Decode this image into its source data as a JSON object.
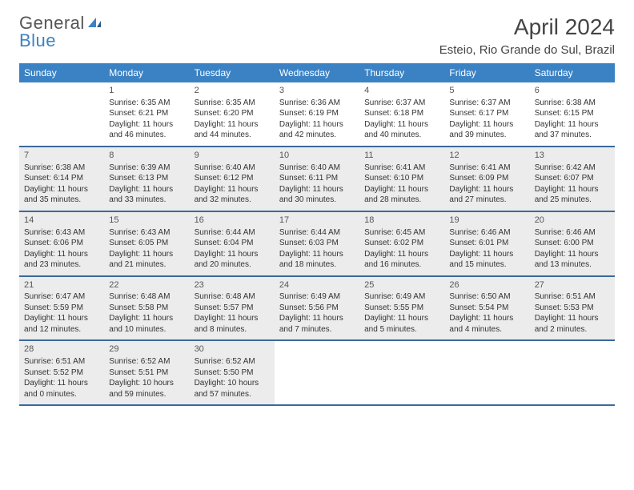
{
  "logo": {
    "word1": "General",
    "word2": "Blue"
  },
  "title": "April 2024",
  "location": "Esteio, Rio Grande do Sul, Brazil",
  "colors": {
    "header_bg": "#3b82c4",
    "header_text": "#ffffff",
    "row_border": "#3b6a9a",
    "shaded_bg": "#ececec",
    "body_text": "#333333",
    "logo_blue": "#3b82c4",
    "logo_gray": "#555555"
  },
  "typography": {
    "title_fontsize": 28,
    "location_fontsize": 15,
    "weekday_fontsize": 12,
    "daynum_fontsize": 11,
    "cell_fontsize": 10
  },
  "weekdays": [
    "Sunday",
    "Monday",
    "Tuesday",
    "Wednesday",
    "Thursday",
    "Friday",
    "Saturday"
  ],
  "weeks": [
    [
      {
        "n": "",
        "empty": true
      },
      {
        "n": "1",
        "sr": "6:35 AM",
        "ss": "6:21 PM",
        "dl": "11 hours and 46 minutes."
      },
      {
        "n": "2",
        "sr": "6:35 AM",
        "ss": "6:20 PM",
        "dl": "11 hours and 44 minutes."
      },
      {
        "n": "3",
        "sr": "6:36 AM",
        "ss": "6:19 PM",
        "dl": "11 hours and 42 minutes."
      },
      {
        "n": "4",
        "sr": "6:37 AM",
        "ss": "6:18 PM",
        "dl": "11 hours and 40 minutes."
      },
      {
        "n": "5",
        "sr": "6:37 AM",
        "ss": "6:17 PM",
        "dl": "11 hours and 39 minutes."
      },
      {
        "n": "6",
        "sr": "6:38 AM",
        "ss": "6:15 PM",
        "dl": "11 hours and 37 minutes."
      }
    ],
    [
      {
        "n": "7",
        "sr": "6:38 AM",
        "ss": "6:14 PM",
        "dl": "11 hours and 35 minutes.",
        "shaded": true
      },
      {
        "n": "8",
        "sr": "6:39 AM",
        "ss": "6:13 PM",
        "dl": "11 hours and 33 minutes.",
        "shaded": true
      },
      {
        "n": "9",
        "sr": "6:40 AM",
        "ss": "6:12 PM",
        "dl": "11 hours and 32 minutes.",
        "shaded": true
      },
      {
        "n": "10",
        "sr": "6:40 AM",
        "ss": "6:11 PM",
        "dl": "11 hours and 30 minutes.",
        "shaded": true
      },
      {
        "n": "11",
        "sr": "6:41 AM",
        "ss": "6:10 PM",
        "dl": "11 hours and 28 minutes.",
        "shaded": true
      },
      {
        "n": "12",
        "sr": "6:41 AM",
        "ss": "6:09 PM",
        "dl": "11 hours and 27 minutes.",
        "shaded": true
      },
      {
        "n": "13",
        "sr": "6:42 AM",
        "ss": "6:07 PM",
        "dl": "11 hours and 25 minutes.",
        "shaded": true
      }
    ],
    [
      {
        "n": "14",
        "sr": "6:43 AM",
        "ss": "6:06 PM",
        "dl": "11 hours and 23 minutes.",
        "shaded": true
      },
      {
        "n": "15",
        "sr": "6:43 AM",
        "ss": "6:05 PM",
        "dl": "11 hours and 21 minutes.",
        "shaded": true
      },
      {
        "n": "16",
        "sr": "6:44 AM",
        "ss": "6:04 PM",
        "dl": "11 hours and 20 minutes.",
        "shaded": true
      },
      {
        "n": "17",
        "sr": "6:44 AM",
        "ss": "6:03 PM",
        "dl": "11 hours and 18 minutes.",
        "shaded": true
      },
      {
        "n": "18",
        "sr": "6:45 AM",
        "ss": "6:02 PM",
        "dl": "11 hours and 16 minutes.",
        "shaded": true
      },
      {
        "n": "19",
        "sr": "6:46 AM",
        "ss": "6:01 PM",
        "dl": "11 hours and 15 minutes.",
        "shaded": true
      },
      {
        "n": "20",
        "sr": "6:46 AM",
        "ss": "6:00 PM",
        "dl": "11 hours and 13 minutes.",
        "shaded": true
      }
    ],
    [
      {
        "n": "21",
        "sr": "6:47 AM",
        "ss": "5:59 PM",
        "dl": "11 hours and 12 minutes.",
        "shaded": true
      },
      {
        "n": "22",
        "sr": "6:48 AM",
        "ss": "5:58 PM",
        "dl": "11 hours and 10 minutes.",
        "shaded": true
      },
      {
        "n": "23",
        "sr": "6:48 AM",
        "ss": "5:57 PM",
        "dl": "11 hours and 8 minutes.",
        "shaded": true
      },
      {
        "n": "24",
        "sr": "6:49 AM",
        "ss": "5:56 PM",
        "dl": "11 hours and 7 minutes.",
        "shaded": true
      },
      {
        "n": "25",
        "sr": "6:49 AM",
        "ss": "5:55 PM",
        "dl": "11 hours and 5 minutes.",
        "shaded": true
      },
      {
        "n": "26",
        "sr": "6:50 AM",
        "ss": "5:54 PM",
        "dl": "11 hours and 4 minutes.",
        "shaded": true
      },
      {
        "n": "27",
        "sr": "6:51 AM",
        "ss": "5:53 PM",
        "dl": "11 hours and 2 minutes.",
        "shaded": true
      }
    ],
    [
      {
        "n": "28",
        "sr": "6:51 AM",
        "ss": "5:52 PM",
        "dl": "11 hours and 0 minutes.",
        "shaded": true
      },
      {
        "n": "29",
        "sr": "6:52 AM",
        "ss": "5:51 PM",
        "dl": "10 hours and 59 minutes.",
        "shaded": true
      },
      {
        "n": "30",
        "sr": "6:52 AM",
        "ss": "5:50 PM",
        "dl": "10 hours and 57 minutes.",
        "shaded": true
      },
      {
        "n": "",
        "empty": true
      },
      {
        "n": "",
        "empty": true
      },
      {
        "n": "",
        "empty": true
      },
      {
        "n": "",
        "empty": true
      }
    ]
  ],
  "labels": {
    "sunrise_prefix": "Sunrise: ",
    "sunset_prefix": "Sunset: ",
    "daylight_prefix": "Daylight: "
  }
}
